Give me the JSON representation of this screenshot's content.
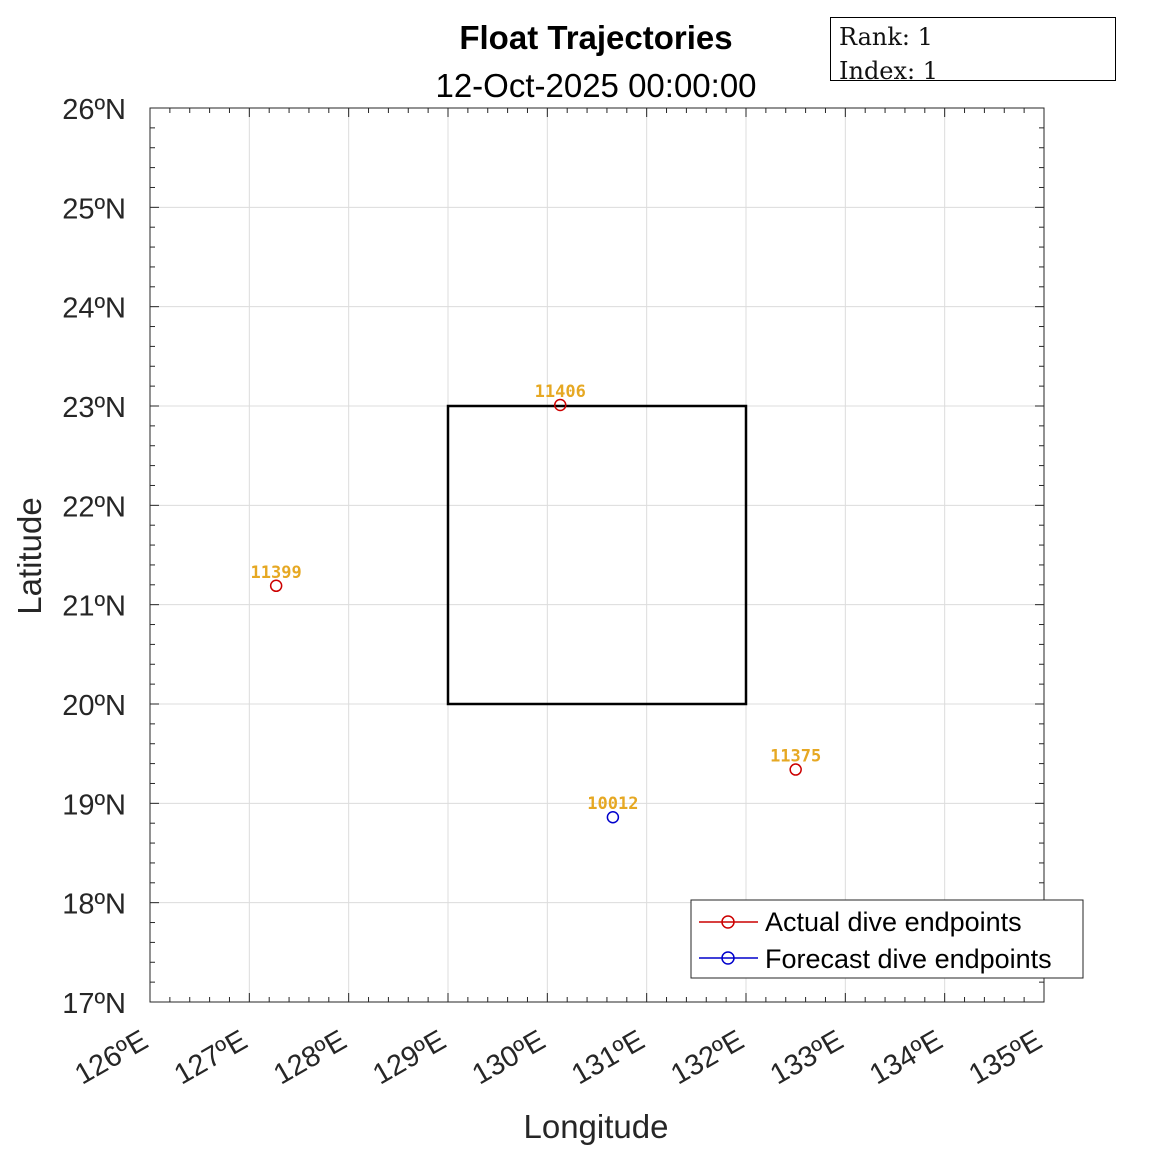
{
  "chart_data": {
    "type": "scatter",
    "title": "Float Trajectories",
    "subtitle": "12-Oct-2025 00:00:00",
    "xlabel": "Longitude",
    "ylabel": "Latitude",
    "xlim": [
      126,
      135
    ],
    "ylim": [
      17,
      26
    ],
    "x_ticks": [
      126,
      127,
      128,
      129,
      130,
      131,
      132,
      133,
      134,
      135
    ],
    "y_ticks": [
      17,
      18,
      19,
      20,
      21,
      22,
      23,
      24,
      25,
      26
    ],
    "x_tick_labels": [
      "126ºE",
      "127ºE",
      "128ºE",
      "129ºE",
      "130ºE",
      "131ºE",
      "132ºE",
      "133ºE",
      "134ºE",
      "135ºE"
    ],
    "y_tick_labels": [
      "17ºN",
      "18ºN",
      "19ºN",
      "20ºN",
      "21ºN",
      "22ºN",
      "23ºN",
      "24ºN",
      "25ºN",
      "26ºN"
    ],
    "grid": true,
    "region_box": {
      "lon": [
        129,
        132
      ],
      "lat": [
        20,
        23
      ]
    },
    "series": [
      {
        "name": "Actual dive endpoints",
        "color": "#cc0000",
        "points": [
          {
            "x": 127.27,
            "y": 21.19,
            "label": "11399"
          },
          {
            "x": 130.13,
            "y": 23.01,
            "label": "11406"
          },
          {
            "x": 132.5,
            "y": 19.34,
            "label": "11375"
          }
        ]
      },
      {
        "name": "Forecast dive endpoints",
        "color": "#0000cc",
        "points": [
          {
            "x": 130.66,
            "y": 18.86,
            "label": "10012"
          }
        ]
      }
    ],
    "label_color": "#e6a823",
    "legend_position": "bottom-right"
  },
  "info_box": {
    "rank_label": "Rank:",
    "rank_value": "1",
    "index_label": "Index:",
    "index_value": "1"
  }
}
